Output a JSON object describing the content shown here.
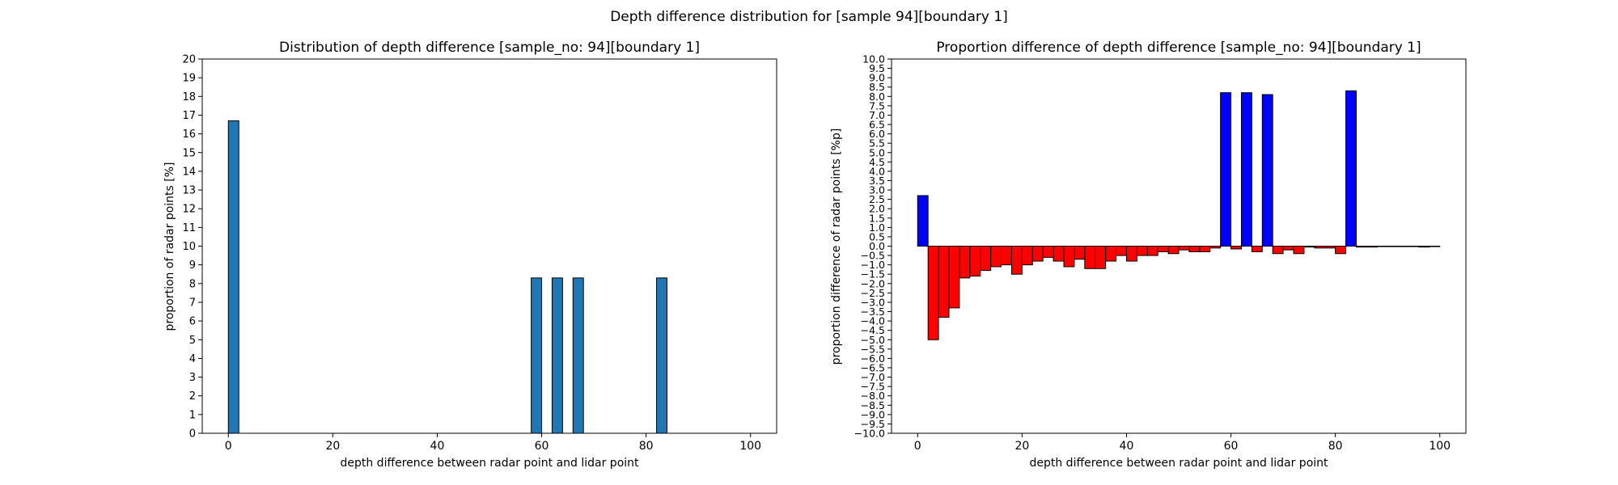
{
  "figure": {
    "suptitle": "Depth difference distribution for [sample 94][boundary 1]"
  },
  "chart_data": [
    {
      "type": "bar",
      "title": "Distribution of depth difference [sample_no: 94][boundary 1]",
      "xlabel": "depth difference between radar point and lidar point",
      "ylabel": "proportion of radar points [%]",
      "xlim": [
        -5,
        105
      ],
      "ylim": [
        0,
        20
      ],
      "xticks": [
        0,
        20,
        40,
        60,
        80,
        100
      ],
      "yticks": [
        0,
        1,
        2,
        3,
        4,
        5,
        6,
        7,
        8,
        9,
        10,
        11,
        12,
        13,
        14,
        15,
        16,
        17,
        18,
        19,
        20
      ],
      "bar_width": 2,
      "x": [
        1,
        59,
        63,
        67,
        83
      ],
      "values": [
        16.7,
        8.3,
        8.3,
        8.3,
        8.3
      ],
      "colors": {
        "bar": "#1f77b4",
        "edge": "#000000"
      }
    },
    {
      "type": "bar",
      "title": "Proportion difference of depth difference [sample_no: 94][boundary 1]",
      "xlabel": "depth difference between radar point and lidar point",
      "ylabel": "proportion difference of radar points [%p]",
      "xlim": [
        -5,
        105
      ],
      "ylim": [
        -10,
        10
      ],
      "xticks": [
        0,
        20,
        40,
        60,
        80,
        100
      ],
      "yticks": [
        -10.0,
        -9.5,
        -9.0,
        -8.5,
        -8.0,
        -7.5,
        -7.0,
        -6.5,
        -6.0,
        -5.5,
        -5.0,
        -4.5,
        -4.0,
        -3.5,
        -3.0,
        -2.5,
        -2.0,
        -1.5,
        -1.0,
        -0.5,
        0.0,
        0.5,
        1.0,
        1.5,
        2.0,
        2.5,
        3.0,
        3.5,
        4.0,
        4.5,
        5.0,
        5.5,
        6.0,
        6.5,
        7.0,
        7.5,
        8.0,
        8.5,
        9.0,
        9.5,
        10.0
      ],
      "bar_width": 2,
      "x": [
        1,
        3,
        5,
        7,
        9,
        11,
        13,
        15,
        17,
        19,
        21,
        23,
        25,
        27,
        29,
        31,
        33,
        35,
        37,
        39,
        41,
        43,
        45,
        47,
        49,
        51,
        53,
        55,
        57,
        59,
        61,
        63,
        65,
        67,
        69,
        71,
        73,
        75,
        77,
        79,
        81,
        83,
        85,
        87,
        89,
        91,
        93,
        95,
        97,
        99
      ],
      "values": [
        2.7,
        -5.0,
        -3.8,
        -3.3,
        -1.7,
        -1.6,
        -1.3,
        -1.1,
        -1.0,
        -1.5,
        -1.0,
        -0.8,
        -0.6,
        -0.8,
        -1.1,
        -0.7,
        -1.2,
        -1.2,
        -0.8,
        -0.5,
        -0.8,
        -0.5,
        -0.5,
        -0.3,
        -0.4,
        -0.2,
        -0.3,
        -0.3,
        -0.1,
        8.2,
        -0.15,
        8.2,
        -0.3,
        8.1,
        -0.4,
        -0.2,
        -0.4,
        -0.05,
        -0.1,
        -0.1,
        -0.4,
        8.3,
        -0.05,
        -0.05,
        0,
        0,
        0,
        0,
        -0.05,
        0
      ],
      "colors": {
        "positive": "#0000ff",
        "negative": "#ff0000",
        "edge": "#000000"
      }
    }
  ]
}
